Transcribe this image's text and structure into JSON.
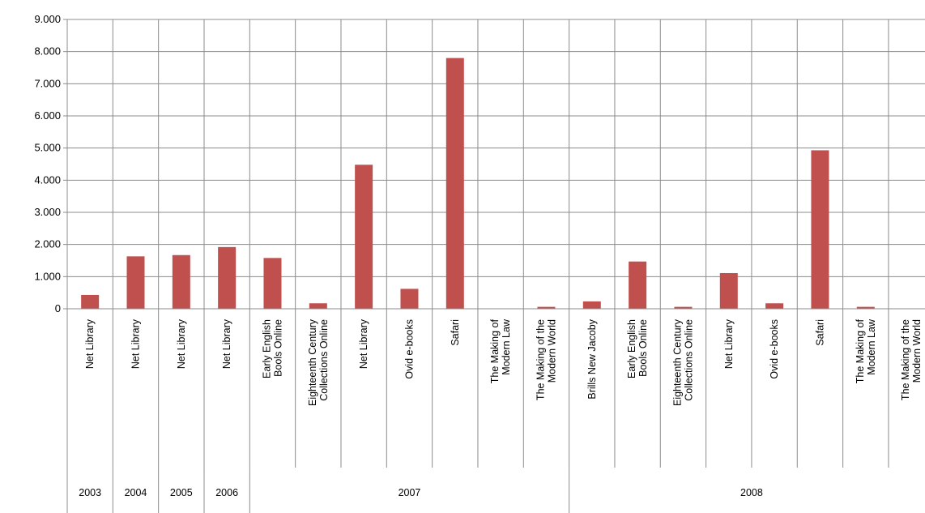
{
  "chart_data": {
    "type": "bar",
    "ylim": [
      0,
      9000
    ],
    "yticks": [
      "0",
      "1.000",
      "2.000",
      "3.000",
      "4.000",
      "5.000",
      "6.000",
      "7.000",
      "8.000",
      "9.000"
    ],
    "grid": true,
    "bar_color": "#C0504D",
    "categories": [
      [
        "Net Library"
      ],
      [
        "Net Library"
      ],
      [
        "Net Library"
      ],
      [
        "Net Library"
      ],
      [
        "Early English",
        "Bools Online"
      ],
      [
        "Eighteenth Century",
        "Collections Online"
      ],
      [
        "Net Library"
      ],
      [
        "Ovid e-books"
      ],
      [
        "Safari"
      ],
      [
        "The Making of",
        "Modern Law"
      ],
      [
        "The Making of the",
        "Modern World"
      ],
      [
        "Brills New Jacoby"
      ],
      [
        "Early English",
        "Bools Online"
      ],
      [
        "Eighteenth Century",
        "Collections Online"
      ],
      [
        "Net Library"
      ],
      [
        "Ovid e-books"
      ],
      [
        "Safari"
      ],
      [
        "The Making of",
        "Modern Law"
      ],
      [
        "The Making of the",
        "Modern World"
      ]
    ],
    "values": [
      430,
      1630,
      1670,
      1920,
      1580,
      170,
      4480,
      620,
      7800,
      0,
      60,
      230,
      1470,
      60,
      1110,
      170,
      4930,
      60,
      0
    ],
    "groups": [
      {
        "label": "2003",
        "count": 1
      },
      {
        "label": "2004",
        "count": 1
      },
      {
        "label": "2005",
        "count": 1
      },
      {
        "label": "2006",
        "count": 1
      },
      {
        "label": "2007",
        "count": 7
      },
      {
        "label": "2008",
        "count": 8
      }
    ]
  }
}
